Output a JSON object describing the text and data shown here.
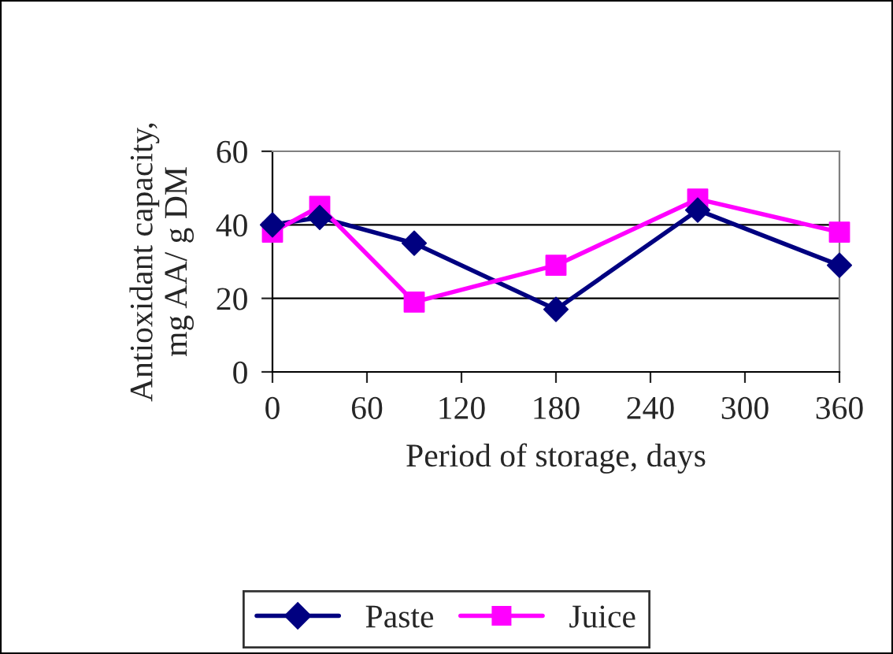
{
  "chart_data": {
    "type": "line",
    "xlabel": "Period of storage, days",
    "ylabel": "Antioxidant capacity,\nmg AA/ g DM",
    "x": [
      0,
      30,
      90,
      180,
      270,
      360
    ],
    "series": [
      {
        "name": "Paste",
        "color": "#000080",
        "marker": "diamond",
        "values": [
          40,
          42,
          35,
          17,
          44,
          29
        ]
      },
      {
        "name": "Juice",
        "color": "#ff00ff",
        "marker": "square",
        "values": [
          38,
          45,
          19,
          29,
          47,
          38
        ]
      }
    ],
    "xlim": [
      0,
      360
    ],
    "xticks": [
      0,
      60,
      120,
      180,
      240,
      300,
      360
    ],
    "ylim": [
      0,
      60
    ],
    "yticks": [
      0,
      20,
      40,
      60
    ],
    "grid": "y",
    "legend": "bottom",
    "line_style": "solid"
  }
}
